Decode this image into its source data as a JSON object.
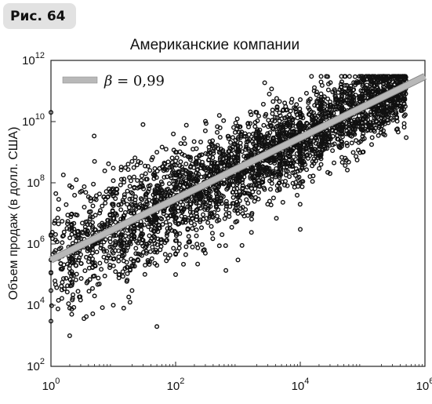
{
  "figure_label": "Рис. 64",
  "chart_data": {
    "type": "scatter",
    "title": "Американские компании",
    "xlabel": "",
    "ylabel": "Объем продаж (в долл. США)",
    "xscale": "log",
    "yscale": "log",
    "xlim": [
      1,
      1000000
    ],
    "ylim": [
      100,
      1000000000000
    ],
    "x_ticks": [
      {
        "value": 1,
        "base": "10",
        "exp": "0"
      },
      {
        "value": 100,
        "base": "10",
        "exp": "2"
      },
      {
        "value": 10000,
        "base": "10",
        "exp": "4"
      },
      {
        "value": 1000000,
        "base": "10",
        "exp": "6"
      }
    ],
    "y_ticks": [
      {
        "value": 100,
        "base": "10",
        "exp": "2"
      },
      {
        "value": 10000,
        "base": "10",
        "exp": "4"
      },
      {
        "value": 1000000,
        "base": "10",
        "exp": "6"
      },
      {
        "value": 100000000,
        "base": "10",
        "exp": "8"
      },
      {
        "value": 10000000000,
        "base": "10",
        "exp": "10"
      },
      {
        "value": 1000000000000,
        "base": "10",
        "exp": "12"
      }
    ],
    "fit_line": {
      "name": "β = 0,99",
      "slope": 0.99,
      "x": [
        1,
        1000000
      ],
      "y": [
        300000,
        300000000000
      ],
      "color": "#b8b8b8"
    },
    "legend": {
      "position": "top-left",
      "symbol": "β",
      "text": " = 0,99"
    },
    "points": {
      "marker": "open-circle",
      "color": "#111111",
      "description_n": 6000,
      "x_range": [
        1,
        500000
      ],
      "y_range": [
        1000,
        300000000000
      ],
      "series": [
        [
          1,
          20000000000
        ],
        [
          1,
          2000000
        ],
        [
          1,
          300000
        ],
        [
          1,
          30000
        ],
        [
          1,
          3000
        ],
        [
          2,
          80000000
        ],
        [
          2,
          3000000
        ],
        [
          2,
          200000
        ],
        [
          2,
          8000
        ],
        [
          2,
          1000
        ],
        [
          5,
          500000000
        ],
        [
          5,
          30000000
        ],
        [
          5,
          1000000
        ],
        [
          5,
          20000
        ],
        [
          10,
          300000000
        ],
        [
          10,
          20000000
        ],
        [
          10,
          500000
        ],
        [
          10,
          10000
        ],
        [
          20,
          500000000
        ],
        [
          20,
          30000000
        ],
        [
          20,
          2000000
        ],
        [
          20,
          30000
        ],
        [
          30,
          8000000000
        ],
        [
          50,
          1000000000
        ],
        [
          50,
          80000000
        ],
        [
          50,
          3000000
        ],
        [
          50,
          200000
        ],
        [
          50,
          2000
        ],
        [
          100,
          1000000000
        ],
        [
          100,
          80000000
        ],
        [
          100,
          5000000
        ],
        [
          100,
          100000
        ],
        [
          300,
          5000000000
        ],
        [
          300,
          300000000
        ],
        [
          300,
          20000000
        ],
        [
          300,
          500000
        ],
        [
          1000,
          1000000000
        ],
        [
          1000,
          100000000
        ],
        [
          1000,
          10000000
        ],
        [
          1000,
          300000
        ],
        [
          2000,
          20000000000
        ],
        [
          3000,
          3000000000
        ],
        [
          3000,
          300000000
        ],
        [
          3000,
          20000000
        ],
        [
          10000,
          20000000000
        ],
        [
          10000,
          1000000000
        ],
        [
          10000,
          100000000
        ],
        [
          10000,
          3000000
        ],
        [
          30000,
          30000000000
        ],
        [
          30000,
          3000000000
        ],
        [
          30000,
          200000000
        ],
        [
          100000,
          100000000000
        ],
        [
          100000,
          20000000000
        ],
        [
          100000,
          1000000000
        ],
        [
          300000,
          200000000000
        ],
        [
          300000,
          20000000000
        ],
        [
          500000,
          3000000000
        ]
      ]
    }
  }
}
